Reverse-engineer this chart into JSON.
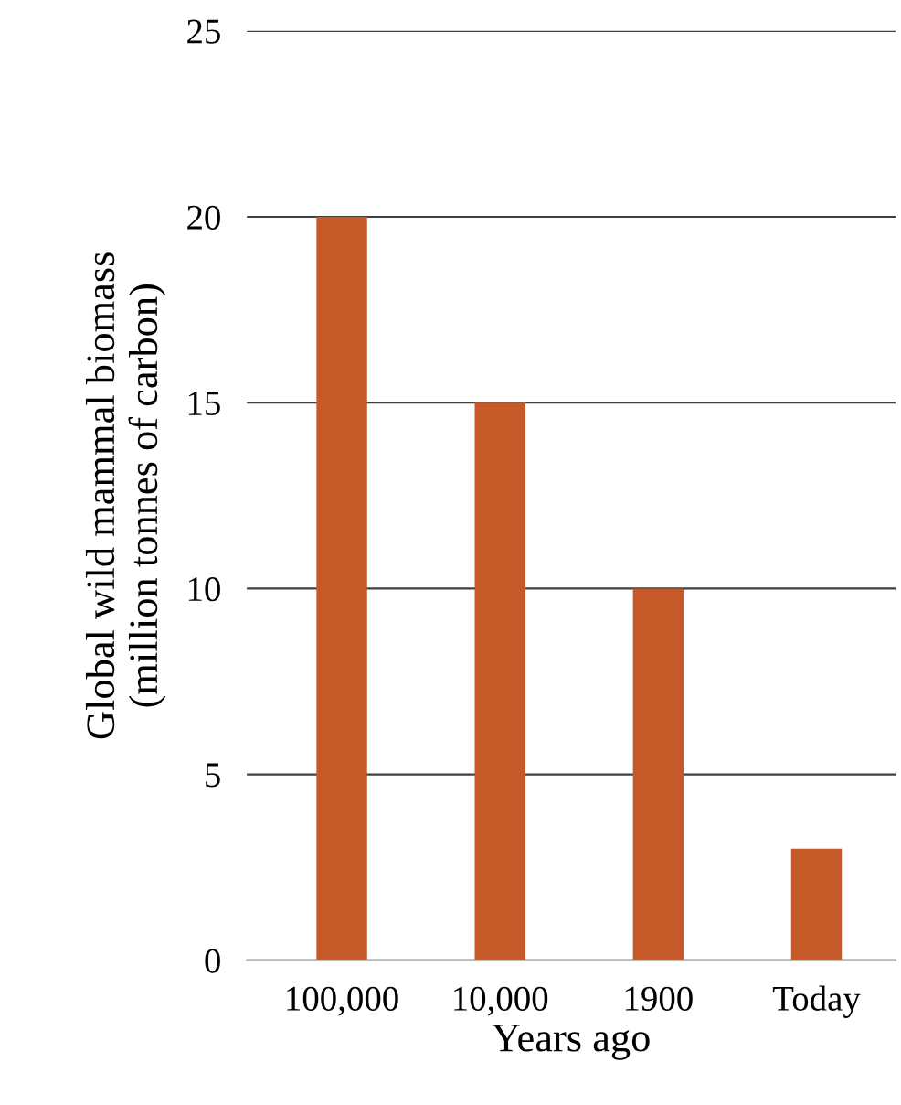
{
  "chart_data": {
    "type": "bar",
    "categories": [
      "100,000",
      "10,000",
      "1900",
      "Today"
    ],
    "values": [
      20,
      15,
      10,
      3
    ],
    "color": "#c55a28",
    "xlabel": "Years ago",
    "ylabel": "Global wild mammal biomass\n(million tonnes of carbon)",
    "ylim": [
      0,
      25
    ],
    "yticks": [
      0,
      5,
      10,
      15,
      20,
      25
    ],
    "grid": "y",
    "legend": false
  }
}
